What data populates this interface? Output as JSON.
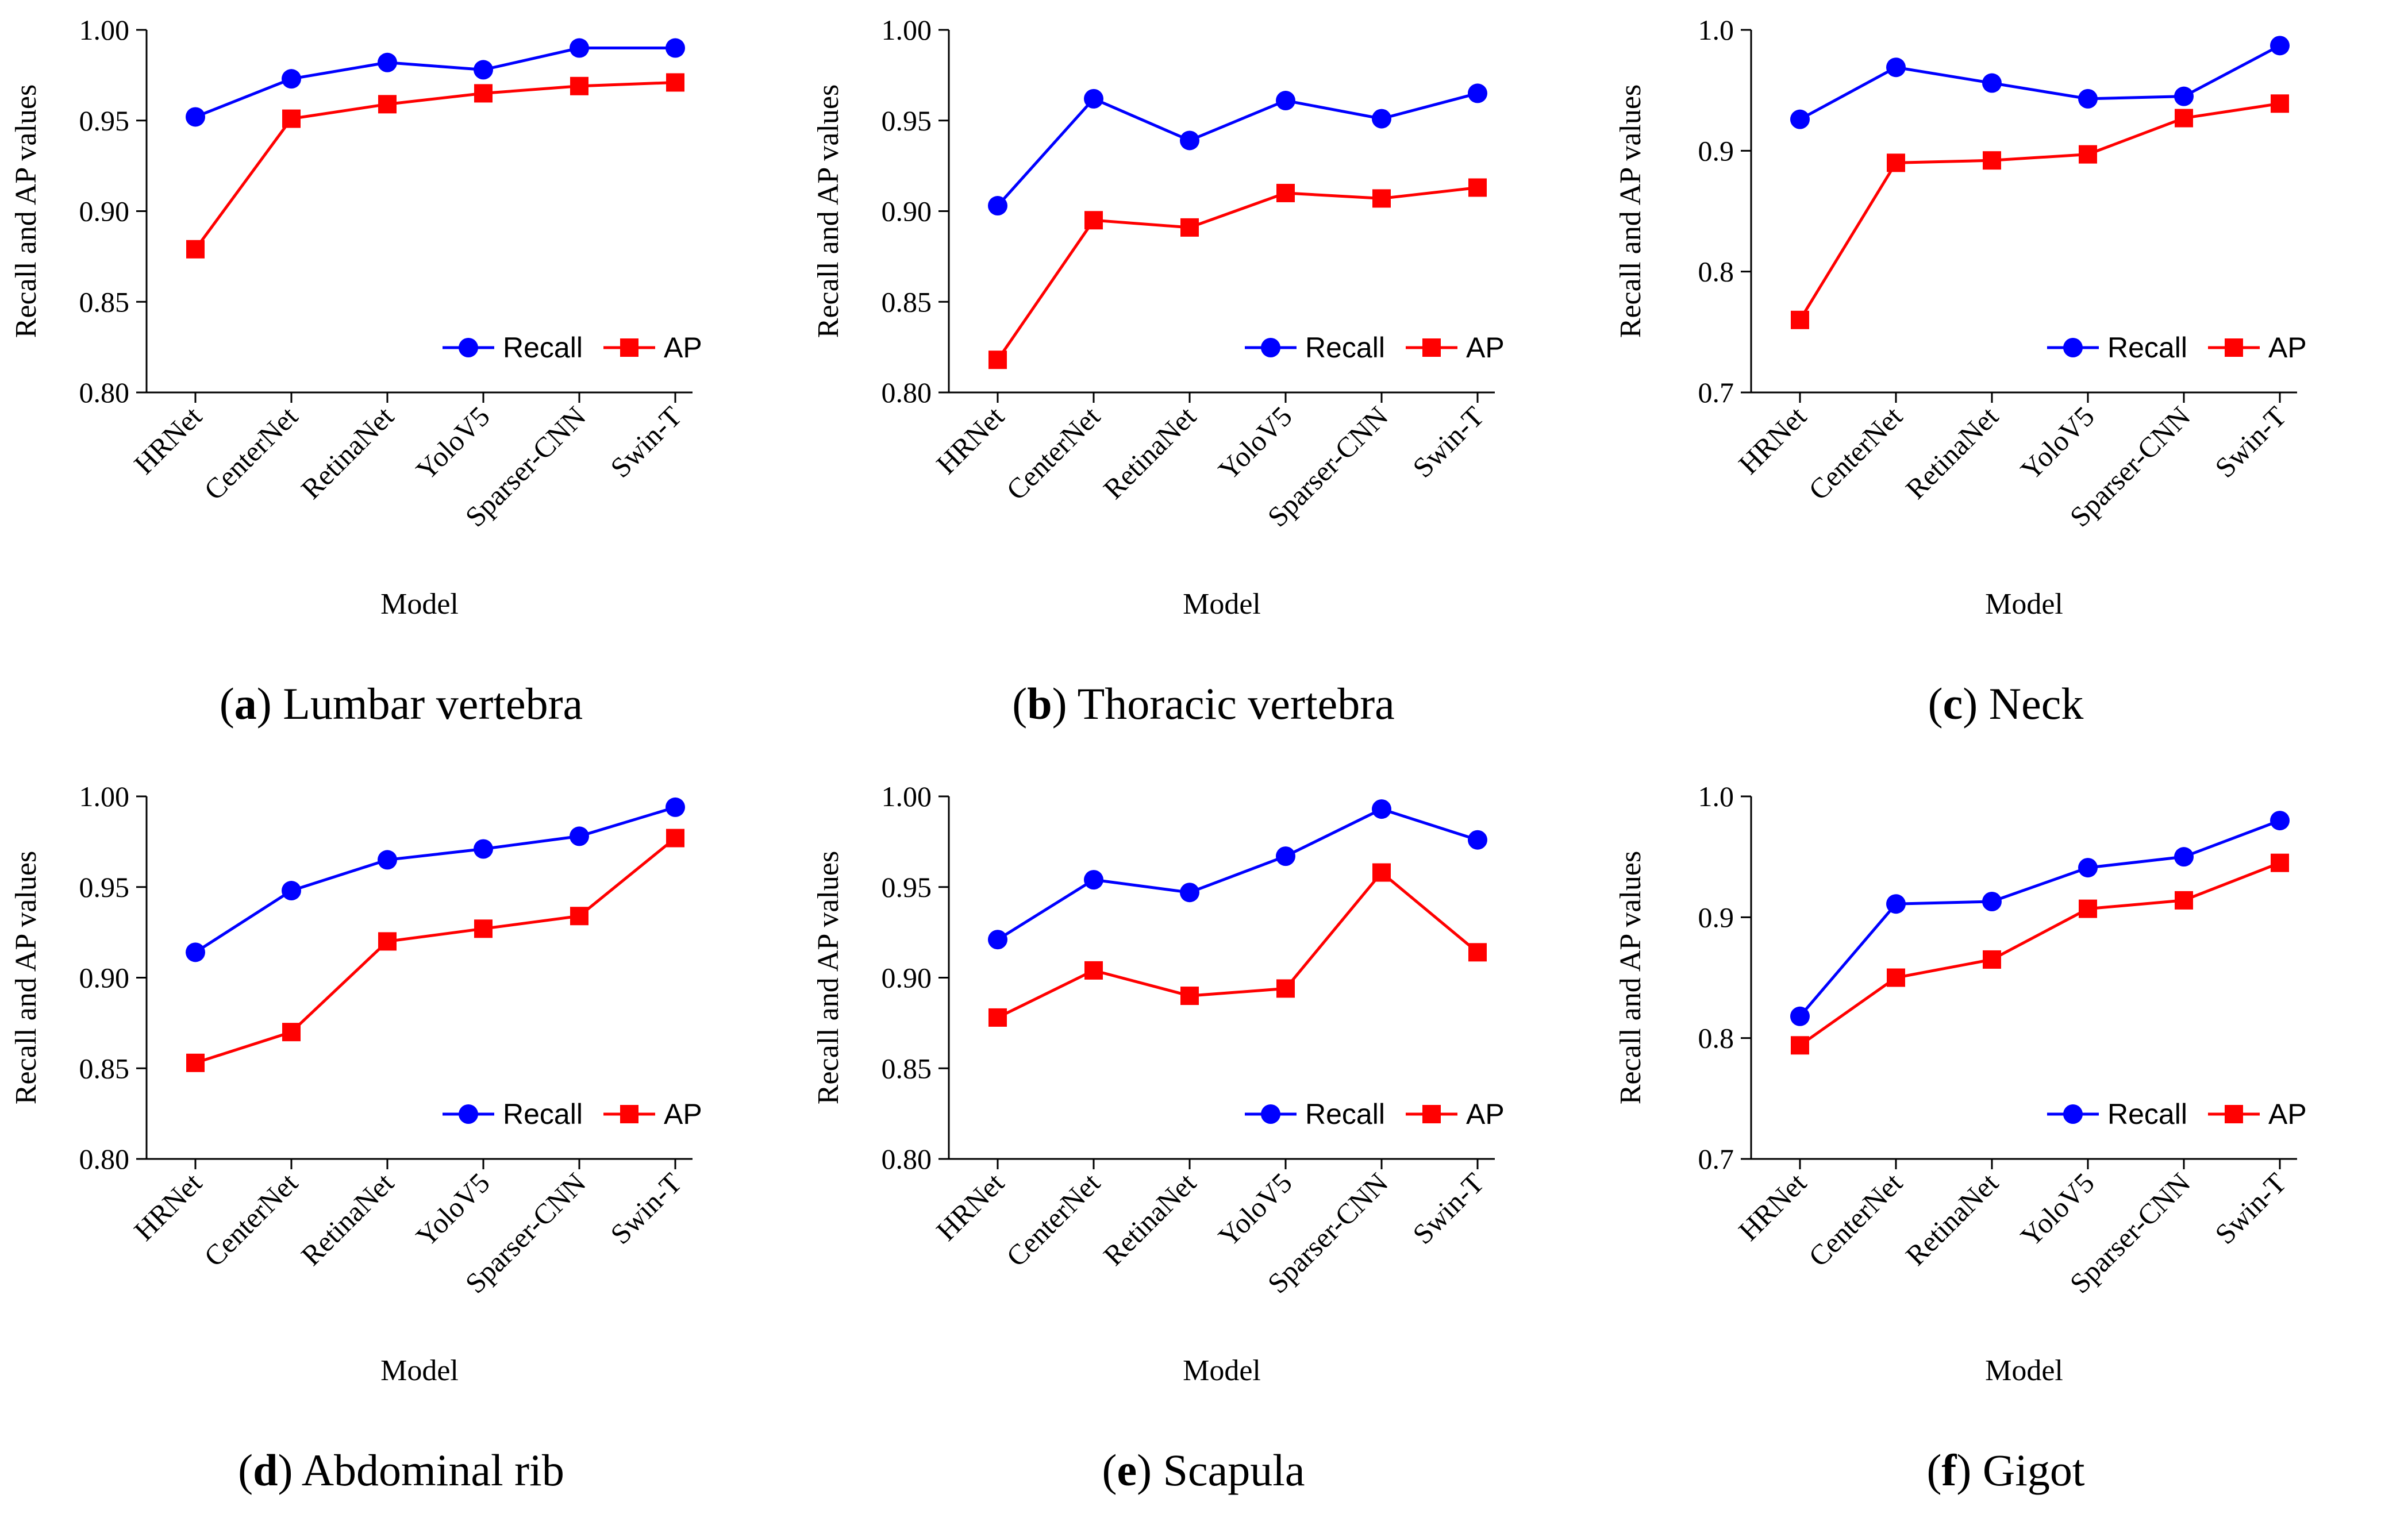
{
  "chart_data": [
    {
      "type": "line",
      "panel_letter": "a",
      "caption_text": "Lumbar vertebra",
      "categories": [
        "HRNet",
        "CenterNet",
        "RetinaNet",
        "YoloV5",
        "Sparser-CNN",
        "Swin-T"
      ],
      "xlabel": "Model",
      "ylabel": "Recall and AP values",
      "ylim": [
        0.8,
        1.0
      ],
      "yticks": [
        "0.80",
        "0.85",
        "0.90",
        "0.95",
        "1.00"
      ],
      "series": [
        {
          "name": "Recall",
          "color": "#0000ff",
          "marker": "circle",
          "values": [
            0.952,
            0.973,
            0.982,
            0.978,
            0.99,
            0.99
          ]
        },
        {
          "name": "AP",
          "color": "#ff0000",
          "marker": "square",
          "values": [
            0.879,
            0.951,
            0.959,
            0.965,
            0.969,
            0.971
          ]
        }
      ],
      "legend_position": "bottom-right"
    },
    {
      "type": "line",
      "panel_letter": "b",
      "caption_text": "Thoracic vertebra",
      "categories": [
        "HRNet",
        "CenterNet",
        "RetinaNet",
        "YoloV5",
        "Sparser-CNN",
        "Swin-T"
      ],
      "xlabel": "Model",
      "ylabel": "Recall and AP values",
      "ylim": [
        0.8,
        1.0
      ],
      "yticks": [
        "0.80",
        "0.85",
        "0.90",
        "0.95",
        "1.00"
      ],
      "series": [
        {
          "name": "Recall",
          "color": "#0000ff",
          "marker": "circle",
          "values": [
            0.903,
            0.962,
            0.939,
            0.961,
            0.951,
            0.965
          ]
        },
        {
          "name": "AP",
          "color": "#ff0000",
          "marker": "square",
          "values": [
            0.818,
            0.895,
            0.891,
            0.91,
            0.907,
            0.913
          ]
        }
      ],
      "legend_position": "bottom-right"
    },
    {
      "type": "line",
      "panel_letter": "c",
      "caption_text": "Neck",
      "categories": [
        "HRNet",
        "CenterNet",
        "RetinaNet",
        "YoloV5",
        "Sparser-CNN",
        "Swin-T"
      ],
      "xlabel": "Model",
      "ylabel": "Recall and AP values",
      "ylim": [
        0.7,
        1.0
      ],
      "yticks": [
        "0.7",
        "0.8",
        "0.9",
        "1.0"
      ],
      "series": [
        {
          "name": "Recall",
          "color": "#0000ff",
          "marker": "circle",
          "values": [
            0.926,
            0.969,
            0.956,
            0.943,
            0.945,
            0.987
          ]
        },
        {
          "name": "AP",
          "color": "#ff0000",
          "marker": "square",
          "values": [
            0.76,
            0.89,
            0.892,
            0.897,
            0.927,
            0.939
          ]
        }
      ],
      "legend_position": "bottom-right"
    },
    {
      "type": "line",
      "panel_letter": "d",
      "caption_text": "Abdominal rib",
      "categories": [
        "HRNet",
        "CenterNet",
        "RetinaNet",
        "YoloV5",
        "Sparser-CNN",
        "Swin-T"
      ],
      "xlabel": "Model",
      "ylabel": "Recall and AP values",
      "ylim": [
        0.8,
        1.0
      ],
      "yticks": [
        "0.80",
        "0.85",
        "0.90",
        "0.95",
        "1.00"
      ],
      "series": [
        {
          "name": "Recall",
          "color": "#0000ff",
          "marker": "circle",
          "values": [
            0.914,
            0.948,
            0.965,
            0.971,
            0.978,
            0.994
          ]
        },
        {
          "name": "AP",
          "color": "#ff0000",
          "marker": "square",
          "values": [
            0.853,
            0.87,
            0.92,
            0.927,
            0.934,
            0.977
          ]
        }
      ],
      "legend_position": "bottom-right"
    },
    {
      "type": "line",
      "panel_letter": "e",
      "caption_text": "Scapula",
      "categories": [
        "HRNet",
        "CenterNet",
        "RetinaNet",
        "YoloV5",
        "Sparser-CNN",
        "Swin-T"
      ],
      "xlabel": "Model",
      "ylabel": "Recall and AP values",
      "ylim": [
        0.8,
        1.0
      ],
      "yticks": [
        "0.80",
        "0.85",
        "0.90",
        "0.95",
        "1.00"
      ],
      "series": [
        {
          "name": "Recall",
          "color": "#0000ff",
          "marker": "circle",
          "values": [
            0.921,
            0.954,
            0.947,
            0.967,
            0.993,
            0.976
          ]
        },
        {
          "name": "AP",
          "color": "#ff0000",
          "marker": "square",
          "values": [
            0.878,
            0.904,
            0.89,
            0.894,
            0.958,
            0.914
          ]
        }
      ],
      "legend_position": "bottom-right"
    },
    {
      "type": "line",
      "panel_letter": "f",
      "caption_text": "Gigot",
      "categories": [
        "HRNet",
        "CenterNet",
        "RetinaNet",
        "YoloV5",
        "Sparser-CNN",
        "Swin-T"
      ],
      "xlabel": "Model",
      "ylabel": "Recall and AP values",
      "ylim": [
        0.7,
        1.0
      ],
      "yticks": [
        "0.7",
        "0.8",
        "0.9",
        "1.0"
      ],
      "series": [
        {
          "name": "Recall",
          "color": "#0000ff",
          "marker": "circle",
          "values": [
            0.818,
            0.911,
            0.913,
            0.941,
            0.95,
            0.98
          ]
        },
        {
          "name": "AP",
          "color": "#ff0000",
          "marker": "square",
          "values": [
            0.794,
            0.85,
            0.865,
            0.907,
            0.914,
            0.945
          ]
        }
      ],
      "legend_position": "bottom-right"
    }
  ]
}
